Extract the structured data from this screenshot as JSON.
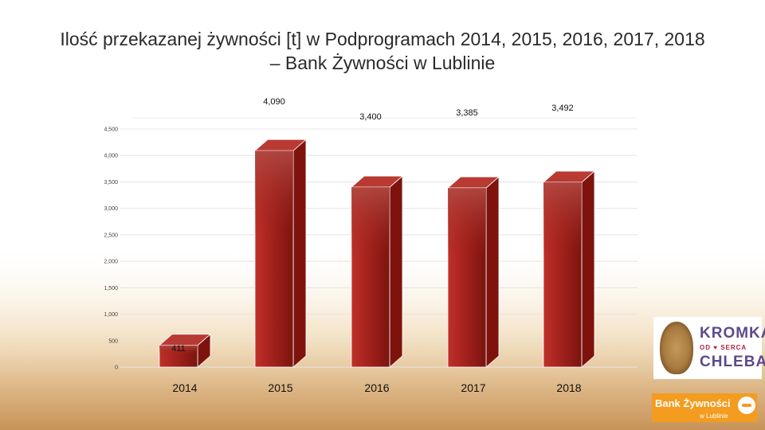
{
  "title": {
    "line1": "Ilość przekazanej żywności [t] w Podprogramach 2014, 2015, 2016, 2017, 2018",
    "line2": "– Bank Żywności w Lublinie"
  },
  "chart_data": {
    "type": "bar",
    "categories": [
      "2014",
      "2015",
      "2016",
      "2017",
      "2018"
    ],
    "values": [
      411,
      4090,
      3400,
      3385,
      3492
    ],
    "data_labels": [
      "411",
      "4,090",
      "3,400",
      "3,385",
      "3,492"
    ],
    "yticks": [
      "0",
      "500",
      "1,000",
      "1,500",
      "2,000",
      "2,500",
      "3,000",
      "3,500",
      "4,000",
      "4,500"
    ],
    "ylim": [
      0,
      4500
    ],
    "grid": true,
    "legend": "none",
    "bar_color": "#a0201a"
  },
  "logos": {
    "kromka_line1": "KROMKA",
    "kromka_line2": "OD ♥ SERCA",
    "kromka_line3": "CHLEBA",
    "bank_name": "Bank Żywności",
    "bank_city": "w Lublinie"
  }
}
